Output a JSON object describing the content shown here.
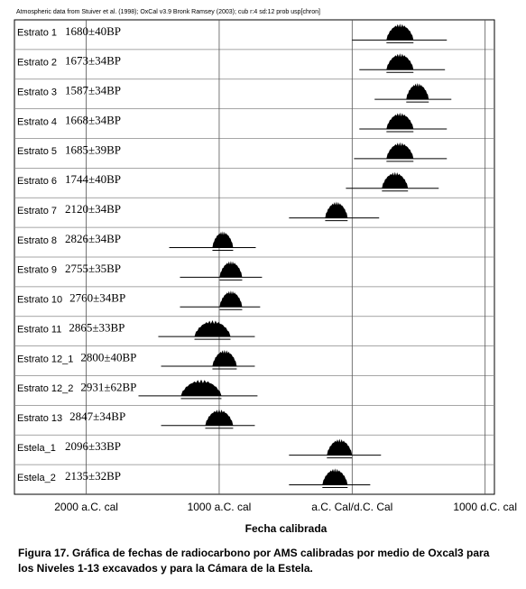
{
  "chart_data": {
    "type": "range",
    "header": "Atmospheric data from Stuiver et al. (1998); OxCal v3.9 Bronk Ramsey (2003); cub r:4 sd:12 prob usp[chron]",
    "xlabel": "Fecha calibrada",
    "caption": [
      "Figura 17.  Gráfica de fechas de radiocarbono por AMS calibradas por medio de Oxcal3 para",
      "los Niveles 1-13 excavados y para la Cámara de la Estela."
    ],
    "xlim": [
      -2540,
      1070
    ],
    "xticks": [
      {
        "value": -2000,
        "label": "2000 a.C. cal"
      },
      {
        "value": -1000,
        "label": "1000 a.C. cal"
      },
      {
        "value": 0,
        "label": "a.C. Cal/d.C. Cal"
      },
      {
        "value": 1000,
        "label": "1000 d.C. cal"
      }
    ],
    "grid": true,
    "color": "#000000",
    "rows": [
      {
        "name": "Estrato 1",
        "date": "1680±40BP",
        "range": [
          0,
          712
        ],
        "dist": [
          258,
          461
        ]
      },
      {
        "name": "Estrato 2",
        "date": "1673±34BP",
        "range": [
          54,
          698
        ],
        "dist": [
          258,
          461
        ]
      },
      {
        "name": "Estrato 3",
        "date": "1587±34BP",
        "range": [
          169,
          746
        ],
        "dist": [
          407,
          576
        ]
      },
      {
        "name": "Estrato 4",
        "date": "1668±34BP",
        "range": [
          54,
          712
        ],
        "dist": [
          258,
          461
        ]
      },
      {
        "name": "Estrato 5",
        "date": "1685±39BP",
        "range": [
          14,
          712
        ],
        "dist": [
          258,
          461
        ]
      },
      {
        "name": "Estrato 6",
        "date": "1744±40BP",
        "range": [
          -47,
          651
        ],
        "dist": [
          224,
          420
        ]
      },
      {
        "name": "Estrato 7",
        "date": "2120±34BP",
        "range": [
          -475,
          203
        ],
        "dist": [
          -203,
          -34
        ]
      },
      {
        "name": "Estrato 8",
        "date": "2826±34BP",
        "range": [
          -1376,
          -725
        ],
        "dist": [
          -1051,
          -895
        ]
      },
      {
        "name": "Estrato 9",
        "date": "2755±35BP",
        "range": [
          -1295,
          -678
        ],
        "dist": [
          -997,
          -827
        ]
      },
      {
        "name": "Estrato 10",
        "date": "2760±34BP",
        "range": [
          -1295,
          -692
        ],
        "dist": [
          -997,
          -827
        ]
      },
      {
        "name": "Estrato 11",
        "date": "2865±33BP",
        "range": [
          -1458,
          -732
        ],
        "dist": [
          -1186,
          -915
        ]
      },
      {
        "name": "Estrato 12_1",
        "date": "2800±40BP",
        "range": [
          -1437,
          -732
        ],
        "dist": [
          -1051,
          -868
        ]
      },
      {
        "name": "Estrato 12_2",
        "date": "2931±62BP",
        "range": [
          -1607,
          -712
        ],
        "dist": [
          -1288,
          -983
        ]
      },
      {
        "name": "Estrato 13",
        "date": "2847±34BP",
        "range": [
          -1437,
          -732
        ],
        "dist": [
          -1105,
          -895
        ]
      },
      {
        "name": "Estela_1",
        "date": "2096±33BP",
        "range": [
          -475,
          217
        ],
        "dist": [
          -190,
          0
        ]
      },
      {
        "name": "Estela_2",
        "date": "2135±32BP",
        "range": [
          -475,
          136
        ],
        "dist": [
          -224,
          -34
        ]
      }
    ]
  }
}
